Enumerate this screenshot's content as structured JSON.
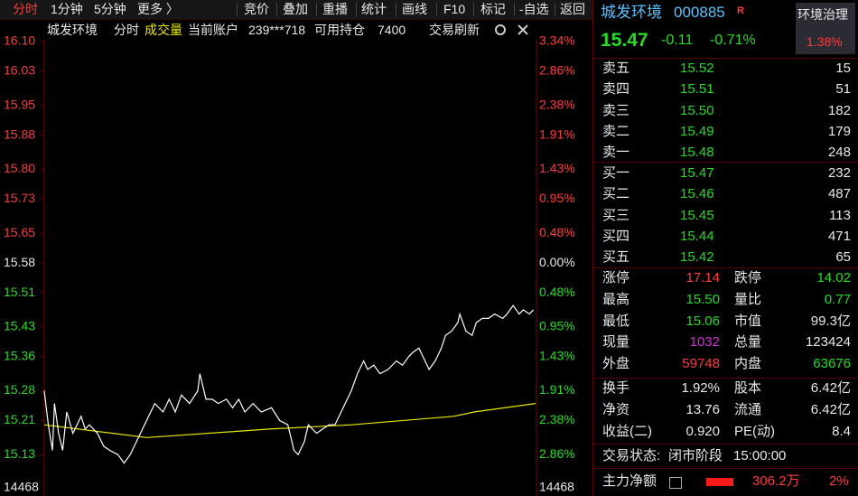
{
  "toolbar": {
    "left": [
      "分时",
      "1分钟",
      "5分钟",
      "更多 〉"
    ],
    "right": [
      "竞价",
      "叠加",
      "重播",
      "统计",
      "画线",
      "F10",
      "标记",
      "-自选",
      "返回"
    ]
  },
  "chart_header": {
    "name": "城发环境",
    "mode": "分时",
    "indicator": "成交量",
    "account_label": "当前账户",
    "account": "239***718",
    "position_label": "可用持仓",
    "position": "7400",
    "refresh": "交易刷新"
  },
  "chart": {
    "type": "line",
    "xlim": [
      0,
      240
    ],
    "ylim": [
      15.054,
      16.1
    ],
    "yticks": [
      {
        "value": 16.1,
        "label": "16.10"
      },
      16.03,
      15.95,
      15.88,
      {
        "value": 15.8,
        "label": "15.80"
      },
      15.73,
      15.65,
      15.58,
      15.51,
      15.43,
      15.36,
      15.28,
      15.21,
      15.13
    ],
    "pct_labels": [
      "3.34%",
      "2.86%",
      "2.38%",
      "1.91%",
      "1.43%",
      "0.95%",
      "0.48%",
      "0.00%",
      "0.48%",
      "0.95%",
      "1.43%",
      "1.91%",
      "2.38%",
      "2.86%"
    ],
    "volume_label": "14468",
    "price": {
      "color": "#ffffff",
      "x": [
        0,
        2,
        4,
        5,
        7,
        9,
        11,
        14,
        16,
        18,
        20,
        22,
        26,
        29,
        32,
        36,
        39,
        42,
        45,
        48,
        51,
        54,
        58,
        61,
        64,
        67,
        71,
        75,
        76,
        79,
        82,
        85,
        89,
        92,
        95,
        98,
        102,
        106,
        111,
        115,
        119,
        120,
        122,
        124,
        127,
        129,
        133,
        136,
        139,
        142,
        145,
        148,
        150,
        153,
        156,
        158,
        161,
        164,
        168,
        172,
        175,
        178,
        180,
        183,
        186,
        188,
        191,
        194,
        196,
        199,
        202,
        203,
        206,
        209,
        211,
        214,
        217,
        220,
        224,
        226,
        229,
        232,
        234,
        237,
        239
      ],
      "values": [
        15.28,
        15.2,
        15.14,
        15.25,
        15.18,
        15.14,
        15.23,
        15.18,
        15.2,
        15.22,
        15.19,
        15.2,
        15.18,
        15.15,
        15.14,
        15.13,
        15.11,
        15.13,
        15.16,
        15.19,
        15.22,
        15.25,
        15.23,
        15.26,
        15.23,
        15.27,
        15.25,
        15.28,
        15.32,
        15.26,
        15.26,
        15.25,
        15.26,
        15.24,
        15.26,
        15.23,
        15.25,
        15.23,
        15.24,
        15.21,
        15.2,
        15.18,
        15.14,
        15.13,
        15.16,
        15.2,
        15.18,
        15.19,
        15.2,
        15.2,
        15.23,
        15.26,
        15.28,
        15.32,
        15.35,
        15.33,
        15.34,
        15.32,
        15.33,
        15.35,
        15.34,
        15.36,
        15.37,
        15.38,
        15.35,
        15.33,
        15.35,
        15.38,
        15.41,
        15.42,
        15.44,
        15.46,
        15.42,
        15.41,
        15.44,
        15.45,
        15.45,
        15.46,
        15.45,
        15.46,
        15.48,
        15.46,
        15.47,
        15.46,
        15.47
      ]
    },
    "average": {
      "color": "#e6e600",
      "x": [
        0,
        50,
        110,
        150,
        200,
        210,
        240
      ],
      "values": [
        15.2,
        15.17,
        15.19,
        15.2,
        15.22,
        15.23,
        15.25
      ]
    }
  },
  "quote": {
    "name": "城发环境",
    "code": "000885",
    "badge": "R",
    "industry": "环境治理",
    "industry_pct": "1.38%",
    "price": "15.47",
    "change": "-0.11",
    "change_pct": "-0.71%"
  },
  "asks": [
    [
      "卖五",
      "15.52",
      "15"
    ],
    [
      "卖四",
      "15.51",
      "51"
    ],
    [
      "卖三",
      "15.50",
      "182"
    ],
    [
      "卖二",
      "15.49",
      "179"
    ],
    [
      "卖一",
      "15.48",
      "248"
    ]
  ],
  "bids": [
    [
      "买一",
      "15.47",
      "232"
    ],
    [
      "买二",
      "15.46",
      "487"
    ],
    [
      "买三",
      "15.45",
      "113"
    ],
    [
      "买四",
      "15.44",
      "471"
    ],
    [
      "买五",
      "15.42",
      "65"
    ]
  ],
  "stats": [
    [
      "涨停",
      "17.14",
      "跌停",
      "14.02"
    ],
    [
      "最高",
      "15.50",
      "量比",
      "0.77"
    ],
    [
      "最低",
      "15.06",
      "市值",
      "99.3亿"
    ],
    [
      "现量",
      "1032",
      "总量",
      "123424"
    ],
    [
      "外盘",
      "59748",
      "内盘",
      "63676"
    ]
  ],
  "stats2": [
    [
      "换手",
      "1.92%",
      "股本",
      "6.42亿"
    ],
    [
      "净资",
      "13.76",
      "流通",
      "6.42亿"
    ],
    [
      "收益(二)",
      "0.920",
      "PE(动)",
      "8.4"
    ]
  ],
  "status": {
    "label": "交易状态:",
    "phase": "闭市阶段",
    "time": "15:00:00"
  },
  "main_flow": {
    "label": "主力净额",
    "value": "306.2万",
    "pct": "2%"
  }
}
